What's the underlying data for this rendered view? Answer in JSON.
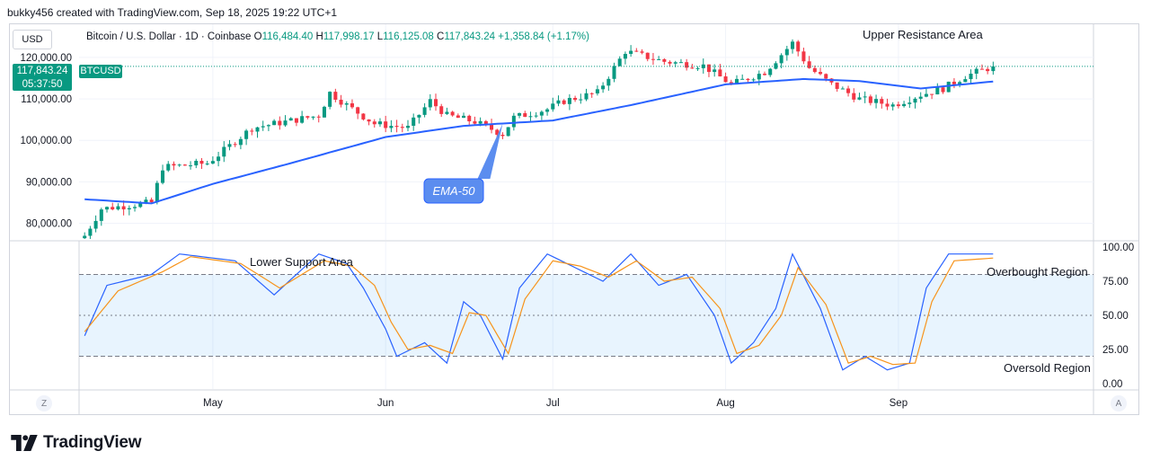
{
  "header": {
    "attribution": "bukky456 created with TradingView.com, Sep 18, 2025 19:22 UTC+1"
  },
  "toolbar": {
    "currency": "USD",
    "left_corner": "Z",
    "right_corner": "A"
  },
  "legend": {
    "symbol": "Bitcoin / U.S. Dollar · 1D · Coinbase",
    "open_label": "O",
    "open": "116,484.40",
    "high_label": "H",
    "high": "117,998.17",
    "low_label": "L",
    "low": "116,125.08",
    "close_label": "C",
    "close": "117,843.24",
    "change": "+1,358.84 (+1.17%)"
  },
  "price_tag": {
    "price": "117,843.24",
    "countdown": "05:37:50",
    "symbol": "BTCUSD"
  },
  "brand": {
    "name": "TradingView"
  },
  "colors": {
    "up": "#089981",
    "down": "#f23645",
    "ema": "#2962ff",
    "stoch_k": "#2962ff",
    "stoch_d": "#f7931a",
    "band": "#2196f3",
    "callout": "#5b8def"
  },
  "chart_data": [
    {
      "type": "candlestick",
      "title": "",
      "yticks": [
        "80,000.00",
        "90,000.00",
        "100,000.00",
        "110,000.00",
        "120,000.00"
      ],
      "ytick_values": [
        80000,
        90000,
        100000,
        110000,
        120000
      ],
      "ylim": [
        76000,
        128000
      ],
      "xticks": [
        "May",
        "Jun",
        "Jul",
        "Aug",
        "Sep"
      ],
      "xlim": [
        "2025-04-07",
        "2025-10-06"
      ],
      "xtick_dates": [
        "2025-05-01",
        "2025-06-01",
        "2025-07-01",
        "2025-08-01",
        "2025-09-01"
      ],
      "date_range": [
        "2025-04-08",
        "2025-09-18"
      ],
      "close_keypoints": [
        [
          "2025-04-08",
          77000
        ],
        [
          "2025-04-11",
          83500
        ],
        [
          "2025-04-20",
          85000
        ],
        [
          "2025-04-22",
          93500
        ],
        [
          "2025-04-30",
          94500
        ],
        [
          "2025-05-02",
          96500
        ],
        [
          "2025-05-08",
          103000
        ],
        [
          "2025-05-12",
          104000
        ],
        [
          "2025-05-20",
          106000
        ],
        [
          "2025-05-22",
          111500
        ],
        [
          "2025-05-25",
          108500
        ],
        [
          "2025-05-30",
          104000
        ],
        [
          "2025-06-05",
          103000
        ],
        [
          "2025-06-09",
          109500
        ],
        [
          "2025-06-12",
          106000
        ],
        [
          "2025-06-17",
          104500
        ],
        [
          "2025-06-22",
          101500
        ],
        [
          "2025-06-24",
          105500
        ],
        [
          "2025-06-30",
          107500
        ],
        [
          "2025-07-03",
          109500
        ],
        [
          "2025-07-09",
          111500
        ],
        [
          "2025-07-14",
          121500
        ],
        [
          "2025-07-21",
          119000
        ],
        [
          "2025-07-28",
          118000
        ],
        [
          "2025-08-02",
          113500
        ],
        [
          "2025-08-08",
          116500
        ],
        [
          "2025-08-13",
          123500
        ],
        [
          "2025-08-16",
          117500
        ],
        [
          "2025-08-20",
          113500
        ],
        [
          "2025-08-25",
          110000
        ],
        [
          "2025-08-31",
          108500
        ],
        [
          "2025-09-05",
          111000
        ],
        [
          "2025-09-09",
          112500
        ],
        [
          "2025-09-13",
          115500
        ],
        [
          "2025-09-18",
          117843
        ]
      ],
      "ema50_keypoints": [
        [
          "2025-04-08",
          85800
        ],
        [
          "2025-04-20",
          84800
        ],
        [
          "2025-05-01",
          89500
        ],
        [
          "2025-05-15",
          94500
        ],
        [
          "2025-06-01",
          100800
        ],
        [
          "2025-06-15",
          103500
        ],
        [
          "2025-07-01",
          104800
        ],
        [
          "2025-07-15",
          108500
        ],
        [
          "2025-08-01",
          113500
        ],
        [
          "2025-08-15",
          114800
        ],
        [
          "2025-08-25",
          114300
        ],
        [
          "2025-09-05",
          112500
        ],
        [
          "2025-09-18",
          114200
        ]
      ],
      "last_price": 117843.24,
      "annotations": [
        "Upper Resistance Area",
        "EMA-50"
      ]
    },
    {
      "type": "line",
      "title": "",
      "yticks": [
        "0.00",
        "25.00",
        "50.00",
        "75.00",
        "100.00"
      ],
      "ytick_values": [
        0,
        25,
        50,
        75,
        100
      ],
      "ylim": [
        -4,
        104
      ],
      "band": [
        20,
        80
      ],
      "series": [
        {
          "role": "k",
          "keypoints": [
            [
              "2025-04-08",
              35
            ],
            [
              "2025-04-12",
              72
            ],
            [
              "2025-04-20",
              80
            ],
            [
              "2025-04-25",
              95
            ],
            [
              "2025-05-05",
              90
            ],
            [
              "2025-05-12",
              65
            ],
            [
              "2025-05-20",
              95
            ],
            [
              "2025-05-25",
              88
            ],
            [
              "2025-05-28",
              70
            ],
            [
              "2025-06-01",
              40
            ],
            [
              "2025-06-03",
              20
            ],
            [
              "2025-06-08",
              30
            ],
            [
              "2025-06-12",
              15
            ],
            [
              "2025-06-15",
              60
            ],
            [
              "2025-06-18",
              50
            ],
            [
              "2025-06-22",
              18
            ],
            [
              "2025-06-25",
              70
            ],
            [
              "2025-06-30",
              95
            ],
            [
              "2025-07-05",
              85
            ],
            [
              "2025-07-10",
              75
            ],
            [
              "2025-07-15",
              95
            ],
            [
              "2025-07-20",
              72
            ],
            [
              "2025-07-25",
              80
            ],
            [
              "2025-07-30",
              50
            ],
            [
              "2025-08-02",
              15
            ],
            [
              "2025-08-06",
              30
            ],
            [
              "2025-08-10",
              55
            ],
            [
              "2025-08-13",
              95
            ],
            [
              "2025-08-18",
              55
            ],
            [
              "2025-08-22",
              10
            ],
            [
              "2025-08-26",
              20
            ],
            [
              "2025-08-30",
              10
            ],
            [
              "2025-09-03",
              15
            ],
            [
              "2025-09-06",
              70
            ],
            [
              "2025-09-10",
              95
            ],
            [
              "2025-09-18",
              95
            ]
          ]
        },
        {
          "role": "d",
          "keypoints": [
            [
              "2025-04-08",
              38
            ],
            [
              "2025-04-14",
              68
            ],
            [
              "2025-04-22",
              82
            ],
            [
              "2025-04-27",
              93
            ],
            [
              "2025-05-06",
              88
            ],
            [
              "2025-05-13",
              70
            ],
            [
              "2025-05-21",
              90
            ],
            [
              "2025-05-26",
              86
            ],
            [
              "2025-05-30",
              72
            ],
            [
              "2025-06-02",
              45
            ],
            [
              "2025-06-05",
              25
            ],
            [
              "2025-06-09",
              28
            ],
            [
              "2025-06-13",
              22
            ],
            [
              "2025-06-16",
              52
            ],
            [
              "2025-06-19",
              50
            ],
            [
              "2025-06-23",
              22
            ],
            [
              "2025-06-26",
              62
            ],
            [
              "2025-07-01",
              90
            ],
            [
              "2025-07-06",
              86
            ],
            [
              "2025-07-11",
              78
            ],
            [
              "2025-07-16",
              90
            ],
            [
              "2025-07-21",
              75
            ],
            [
              "2025-07-26",
              78
            ],
            [
              "2025-07-31",
              55
            ],
            [
              "2025-08-03",
              22
            ],
            [
              "2025-08-07",
              28
            ],
            [
              "2025-08-11",
              50
            ],
            [
              "2025-08-14",
              85
            ],
            [
              "2025-08-19",
              58
            ],
            [
              "2025-08-23",
              15
            ],
            [
              "2025-08-27",
              20
            ],
            [
              "2025-08-31",
              14
            ],
            [
              "2025-09-04",
              15
            ],
            [
              "2025-09-07",
              60
            ],
            [
              "2025-09-11",
              90
            ],
            [
              "2025-09-18",
              92
            ]
          ]
        }
      ],
      "annotations": [
        "Lower Support Area",
        "Overbought Region",
        "Oversold Region"
      ]
    }
  ]
}
